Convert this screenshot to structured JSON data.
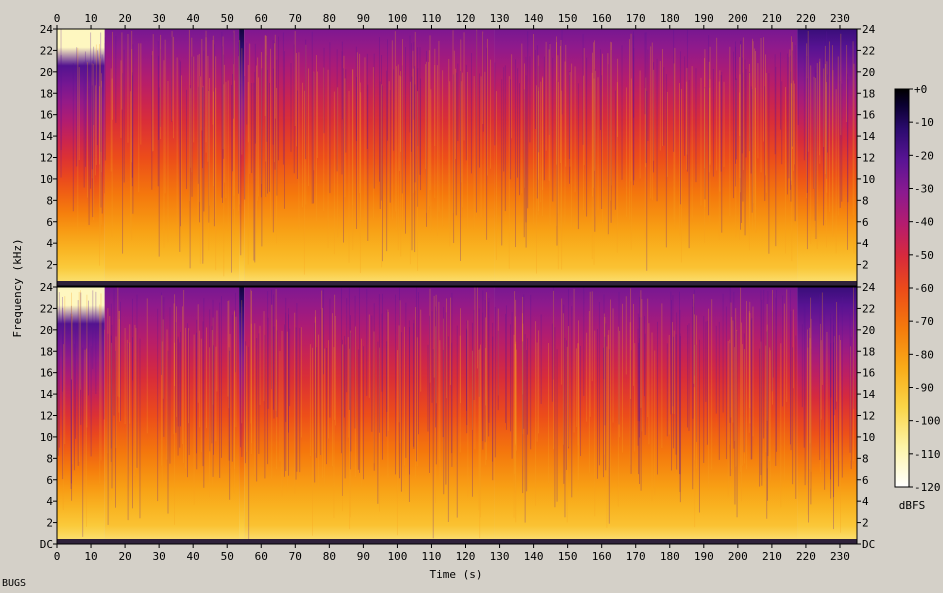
{
  "chart_data": {
    "type": "heatmap",
    "title": "",
    "xlabel": "Time (s)",
    "ylabel": "Frequency (kHz)",
    "x_ticks": [
      0,
      10,
      20,
      30,
      40,
      50,
      60,
      70,
      80,
      90,
      100,
      110,
      120,
      130,
      140,
      150,
      160,
      170,
      180,
      190,
      200,
      210,
      220,
      230
    ],
    "y_ticks": [
      "DC",
      "2",
      "4",
      "6",
      "8",
      "10",
      "12",
      "14",
      "16",
      "18",
      "20",
      "22",
      "24"
    ],
    "xlim": [
      0,
      235
    ],
    "ylim": [
      0,
      24
    ],
    "channels": 2,
    "colorbar": {
      "label": "dBFS",
      "ticks": [
        "+0",
        "-10",
        "-20",
        "-30",
        "-40",
        "-50",
        "-60",
        "-70",
        "-80",
        "-90",
        "-100",
        "-110",
        "-120"
      ],
      "range": [
        -120,
        0
      ]
    },
    "segments": [
      {
        "t0": 0,
        "t1": 14,
        "bright": 0.92,
        "cutoff_khz": 21.5
      },
      {
        "t0": 14,
        "t1": 53.5,
        "bright": 0.62,
        "cutoff_khz": 24
      },
      {
        "t0": 53.5,
        "t1": 55,
        "bright": 0.95,
        "cutoff_khz": 24
      },
      {
        "t0": 55,
        "t1": 128.5,
        "bright": 0.6,
        "cutoff_khz": 24
      },
      {
        "t0": 128.5,
        "t1": 217.5,
        "bright": 0.62,
        "cutoff_khz": 24
      },
      {
        "t0": 217.5,
        "t1": 235,
        "bright": 0.8,
        "cutoff_khz": 24
      }
    ],
    "colors": [
      "#000000",
      "#0a0030",
      "#2b0b6e",
      "#5a1495",
      "#8b1a8f",
      "#b51c6e",
      "#d72a3c",
      "#ec4a1a",
      "#f57a0c",
      "#f9ab18",
      "#fbd548",
      "#fdf4a8",
      "#ffffff"
    ]
  },
  "footer": {
    "label": "BUGS"
  }
}
